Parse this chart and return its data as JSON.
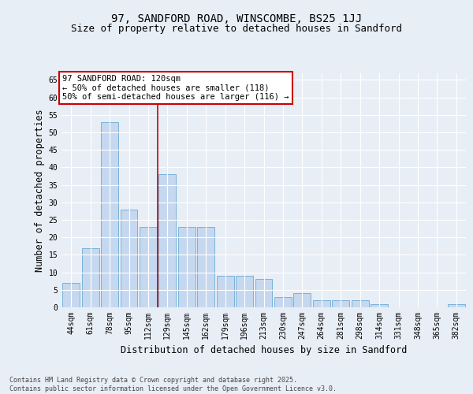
{
  "title1": "97, SANDFORD ROAD, WINSCOMBE, BS25 1JJ",
  "title2": "Size of property relative to detached houses in Sandford",
  "xlabel": "Distribution of detached houses by size in Sandford",
  "ylabel": "Number of detached properties",
  "categories": [
    "44sqm",
    "61sqm",
    "78sqm",
    "95sqm",
    "112sqm",
    "129sqm",
    "145sqm",
    "162sqm",
    "179sqm",
    "196sqm",
    "213sqm",
    "230sqm",
    "247sqm",
    "264sqm",
    "281sqm",
    "298sqm",
    "314sqm",
    "331sqm",
    "348sqm",
    "365sqm",
    "382sqm"
  ],
  "values": [
    7,
    17,
    53,
    28,
    23,
    38,
    23,
    23,
    9,
    9,
    8,
    3,
    4,
    2,
    2,
    2,
    1,
    0,
    0,
    0,
    1
  ],
  "bar_color": "#c5d8ef",
  "bar_edge_color": "#6aaad4",
  "fig_bg": "#e8eef6",
  "plot_bg": "#e8eef6",
  "grid_color": "#ffffff",
  "annotation_text": "97 SANDFORD ROAD: 120sqm\n← 50% of detached houses are smaller (118)\n50% of semi-detached houses are larger (116) →",
  "annotation_box_edgecolor": "#cc0000",
  "vline_color": "#cc0000",
  "vline_x": 4.5,
  "ylim": [
    0,
    67
  ],
  "yticks": [
    0,
    5,
    10,
    15,
    20,
    25,
    30,
    35,
    40,
    45,
    50,
    55,
    60,
    65
  ],
  "footer1": "Contains HM Land Registry data © Crown copyright and database right 2025.",
  "footer2": "Contains public sector information licensed under the Open Government Licence v3.0.",
  "title_fontsize": 10,
  "subtitle_fontsize": 9,
  "tick_fontsize": 7,
  "label_fontsize": 8.5,
  "ann_fontsize": 7.5
}
